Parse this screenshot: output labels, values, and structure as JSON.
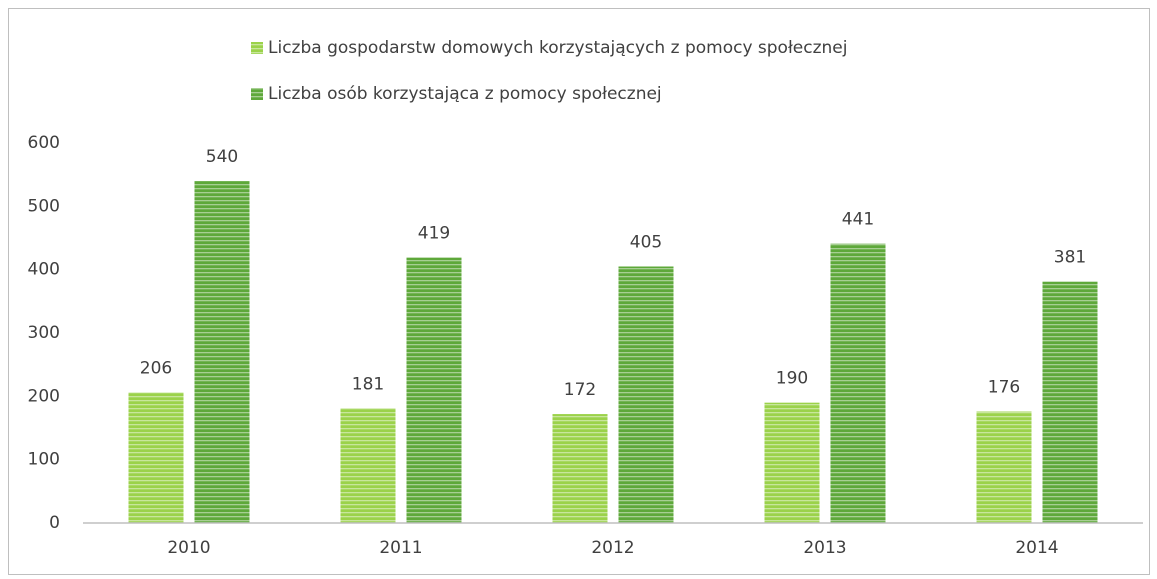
{
  "chart_data": {
    "type": "bar",
    "categories": [
      "2010",
      "2011",
      "2012",
      "2013",
      "2014"
    ],
    "series": [
      {
        "name": "Liczba gospodarstw domowych korzystających z pomocy społecznej",
        "color": "#9bd24a",
        "values": [
          206,
          181,
          172,
          190,
          176
        ]
      },
      {
        "name": "Liczba osób korzystająca z pomocy społecznej",
        "color": "#5ea83a",
        "values": [
          540,
          419,
          405,
          441,
          381
        ]
      }
    ],
    "ylim": [
      0,
      600
    ],
    "yticks": [
      0,
      100,
      200,
      300,
      400,
      500,
      600
    ],
    "grid": false,
    "legend": "top"
  }
}
